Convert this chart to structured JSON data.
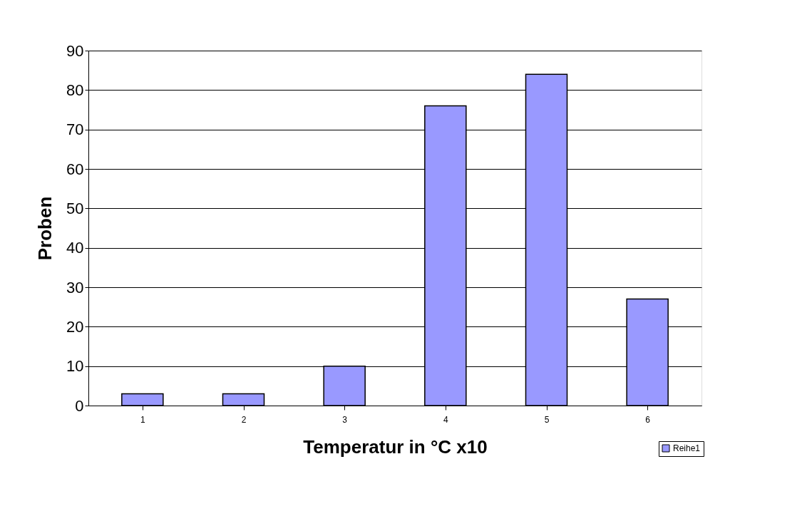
{
  "chart_data": {
    "type": "bar",
    "xlabel": "Temperatur in °C x10",
    "ylabel": "Proben",
    "categories": [
      "1",
      "2",
      "3",
      "4",
      "5",
      "6"
    ],
    "series": [
      {
        "name": "Reihe1",
        "color": "#9999ff",
        "values": [
          3,
          3,
          10,
          76,
          84,
          27
        ]
      }
    ],
    "ylim": [
      0,
      90
    ],
    "yticks": [
      0,
      10,
      20,
      30,
      40,
      50,
      60,
      70,
      80,
      90
    ],
    "grid": "y",
    "legend": "bottom right"
  }
}
